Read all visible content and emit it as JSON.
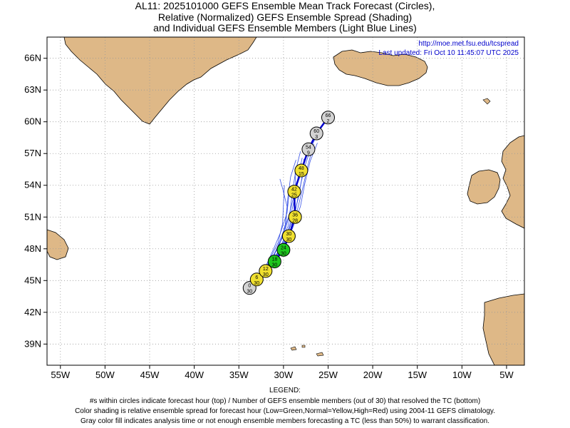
{
  "title_lines": [
    "AL11: 2025101000 GEFS Ensemble Mean Track Forecast (Circles),",
    "Relative (Normalized) GEFS Ensemble Spread (Shading)",
    "and Individual GEFS Ensemble Members (Light Blue Lines)"
  ],
  "source_url": "http://moe.met.fsu.edu/tcspread",
  "last_updated": "Last updated: Fri Oct 10 11:45:07 UTC 2025",
  "axes": {
    "lon_range": [
      -56.5,
      -3
    ],
    "lat_range": [
      37,
      68
    ],
    "lon_ticks": [
      {
        "value": -55,
        "label": "55W"
      },
      {
        "value": -50,
        "label": "50W"
      },
      {
        "value": -45,
        "label": "45W"
      },
      {
        "value": -40,
        "label": "40W"
      },
      {
        "value": -35,
        "label": "35W"
      },
      {
        "value": -30,
        "label": "30W"
      },
      {
        "value": -25,
        "label": "25W"
      },
      {
        "value": -20,
        "label": "20W"
      },
      {
        "value": -15,
        "label": "15W"
      },
      {
        "value": -10,
        "label": "10W"
      },
      {
        "value": -5,
        "label": "5W"
      }
    ],
    "lat_ticks": [
      {
        "value": 39,
        "label": "39N"
      },
      {
        "value": 42,
        "label": "42N"
      },
      {
        "value": 45,
        "label": "45N"
      },
      {
        "value": 48,
        "label": "48N"
      },
      {
        "value": 51,
        "label": "51N"
      },
      {
        "value": 54,
        "label": "54N"
      },
      {
        "value": 57,
        "label": "57N"
      },
      {
        "value": 60,
        "label": "60N"
      },
      {
        "value": 63,
        "label": "63N"
      },
      {
        "value": 66,
        "label": "66N"
      }
    ],
    "grid": true
  },
  "colors": {
    "land": "#deb887",
    "ocean": "#ffffff",
    "member_lines": "#3a54e6",
    "mean_track": "#0000cc",
    "spread_low": "#1ec81e",
    "spread_normal": "#f0e030",
    "spread_high": "#e02020",
    "no_classification": "#d3d3d3",
    "info_text": "#0000cc"
  },
  "chart_data": {
    "type": "map-track",
    "storm": "AL11",
    "init": "2025101000",
    "ensemble_size": 30,
    "mean_track": [
      {
        "hour": "0",
        "members": "30",
        "lon": -33.8,
        "lat": 44.3,
        "spread": "none"
      },
      {
        "hour": "6",
        "members": "30",
        "lon": -33.0,
        "lat": 45.1,
        "spread": "normal"
      },
      {
        "hour": "12",
        "members": "30",
        "lon": -32.0,
        "lat": 45.9,
        "spread": "normal"
      },
      {
        "hour": "18",
        "members": "30",
        "lon": -31.0,
        "lat": 46.8,
        "spread": "low"
      },
      {
        "hour": "24",
        "members": "30",
        "lon": -30.0,
        "lat": 47.9,
        "spread": "low"
      },
      {
        "hour": "30",
        "members": "30",
        "lon": -29.4,
        "lat": 49.2,
        "spread": "normal"
      },
      {
        "hour": "36",
        "members": "28",
        "lon": -28.7,
        "lat": 51.0,
        "spread": "normal"
      },
      {
        "hour": "42",
        "members": "25",
        "lon": -28.8,
        "lat": 53.4,
        "spread": "normal"
      },
      {
        "hour": "48",
        "members": "15",
        "lon": -28.0,
        "lat": 55.4,
        "spread": "normal"
      },
      {
        "hour": "54",
        "members": "9",
        "lon": -27.2,
        "lat": 57.4,
        "spread": "none"
      },
      {
        "hour": "60",
        "members": "3",
        "lon": -26.3,
        "lat": 58.9,
        "spread": "none"
      },
      {
        "hour": "66",
        "members": "2",
        "lon": -25.0,
        "lat": 60.4,
        "spread": "none"
      }
    ],
    "member_tracks": [
      [
        [
          -33.8,
          44.3
        ],
        [
          -32.4,
          45.6
        ],
        [
          -30.8,
          47.2
        ],
        [
          -29.6,
          49.3
        ],
        [
          -28.7,
          51.4
        ],
        [
          -28.2,
          53.6
        ],
        [
          -27.6,
          55.8
        ],
        [
          -26.9,
          57.6
        ],
        [
          -26.0,
          59.2
        ],
        [
          -24.8,
          60.7
        ]
      ],
      [
        [
          -33.8,
          44.3
        ],
        [
          -32.6,
          45.6
        ],
        [
          -31.2,
          47.2
        ],
        [
          -30.1,
          49.1
        ],
        [
          -29.3,
          51.2
        ],
        [
          -29.0,
          53.4
        ],
        [
          -28.6,
          55.5
        ],
        [
          -28.1,
          57.2
        ]
      ],
      [
        [
          -33.8,
          44.3
        ],
        [
          -32.2,
          45.7
        ],
        [
          -30.6,
          47.4
        ],
        [
          -29.3,
          49.6
        ],
        [
          -28.4,
          51.8
        ],
        [
          -27.8,
          53.9
        ],
        [
          -27.2,
          56.1
        ],
        [
          -26.6,
          57.9
        ]
      ],
      [
        [
          -33.8,
          44.3
        ],
        [
          -32.8,
          45.4
        ],
        [
          -31.6,
          46.9
        ],
        [
          -30.6,
          48.6
        ],
        [
          -30.1,
          50.4
        ],
        [
          -30.0,
          52.2
        ],
        [
          -29.9,
          54.0
        ]
      ],
      [
        [
          -33.8,
          44.3
        ],
        [
          -32.5,
          45.5
        ],
        [
          -31.0,
          47.0
        ],
        [
          -30.0,
          48.8
        ],
        [
          -29.7,
          50.8
        ],
        [
          -29.5,
          52.9
        ],
        [
          -29.2,
          54.8
        ],
        [
          -28.6,
          56.4
        ]
      ],
      [
        [
          -33.8,
          44.3
        ],
        [
          -32.3,
          45.8
        ],
        [
          -30.7,
          47.6
        ],
        [
          -29.5,
          49.7
        ],
        [
          -28.8,
          51.6
        ],
        [
          -28.6,
          53.5
        ],
        [
          -28.7,
          55.2
        ]
      ],
      [
        [
          -33.8,
          44.3
        ],
        [
          -32.9,
          45.2
        ],
        [
          -31.9,
          46.5
        ],
        [
          -31.1,
          48.0
        ],
        [
          -30.3,
          49.6
        ],
        [
          -29.6,
          51.4
        ],
        [
          -29.4,
          53.0
        ]
      ],
      [
        [
          -33.8,
          44.3
        ],
        [
          -32.1,
          45.9
        ],
        [
          -30.3,
          47.8
        ],
        [
          -29.0,
          49.9
        ],
        [
          -28.1,
          52.0
        ],
        [
          -27.6,
          54.2
        ],
        [
          -27.0,
          56.3
        ],
        [
          -26.2,
          58.0
        ]
      ],
      [
        [
          -33.8,
          44.3
        ],
        [
          -32.6,
          45.3
        ],
        [
          -31.4,
          46.8
        ],
        [
          -30.4,
          48.5
        ],
        [
          -29.8,
          50.3
        ],
        [
          -29.6,
          52.0
        ],
        [
          -30.1,
          53.7
        ],
        [
          -30.4,
          54.6
        ]
      ],
      [
        [
          -33.8,
          44.3
        ],
        [
          -32.4,
          45.7
        ],
        [
          -31.1,
          47.3
        ],
        [
          -30.2,
          49.2
        ],
        [
          -29.4,
          51.1
        ],
        [
          -28.8,
          53.1
        ],
        [
          -28.3,
          55.0
        ],
        [
          -27.9,
          56.6
        ]
      ],
      [
        [
          -33.8,
          44.3
        ],
        [
          -32.7,
          45.4
        ],
        [
          -31.5,
          46.8
        ],
        [
          -30.5,
          48.4
        ],
        [
          -29.5,
          50.1
        ],
        [
          -28.9,
          52.2
        ],
        [
          -28.4,
          54.3
        ]
      ],
      [
        [
          -33.8,
          44.3
        ],
        [
          -32.2,
          45.6
        ],
        [
          -30.9,
          47.1
        ],
        [
          -29.8,
          48.9
        ],
        [
          -28.9,
          50.9
        ],
        [
          -28.3,
          52.9
        ],
        [
          -27.9,
          54.9
        ],
        [
          -27.7,
          56.5
        ]
      ]
    ]
  },
  "legend": {
    "heading": "LEGEND:",
    "lines": [
      "#s within circles indicate forecast hour (top) / Number of GEFS ensemble members (out of 30) that resolved the TC (bottom)",
      "Color shading is relative ensemble spread for forecast hour (Low=Green,Normal=Yellow,High=Red) using 2004-11 GEFS climatology.",
      "Gray color fill indicates analysis time or not enough ensemble members forecasting a TC (less than 50%) to warrant classification."
    ]
  }
}
